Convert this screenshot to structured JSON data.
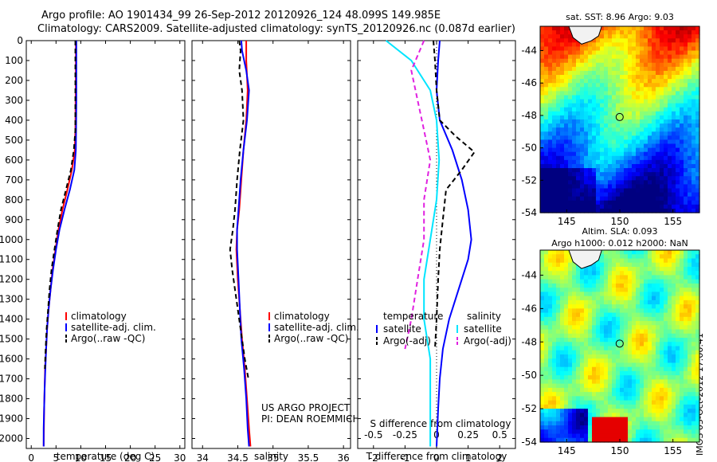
{
  "header": {
    "line1": "Argo profile: AO 1901434_99 26-Sep-2012 20120926_124 48.099S 149.985E",
    "line2": "Climatology: CARS2009. Satellite-adjusted climatology: synTS_20120926.nc (0.087d earlier)"
  },
  "side_label": "IMOS 03-Oct-2012 17:00:41",
  "colors": {
    "climatology": "#ff0000",
    "satellite": "#0000ff",
    "argo": "#000000",
    "salinity_satellite": "#00e5ff",
    "salinity_argo": "#e020e0"
  },
  "chart_data": [
    {
      "type": "line",
      "panel": "temperature",
      "xlabel": "temperature (deg C)",
      "xlim": [
        -1,
        31
      ],
      "xticks": [
        0,
        5,
        10,
        15,
        20,
        25,
        30
      ],
      "xtick_labels": [
        "0",
        "5",
        "10",
        "15",
        "20",
        "25",
        "30"
      ],
      "ylim": [
        2050,
        0
      ],
      "yticks": [
        0,
        100,
        200,
        300,
        400,
        500,
        600,
        700,
        800,
        900,
        1000,
        1100,
        1200,
        1300,
        1400,
        1500,
        1600,
        1700,
        1800,
        1900,
        2000
      ],
      "ytick_labels": [
        "0",
        "100",
        "200",
        "300",
        "400",
        "500",
        "600",
        "700",
        "800",
        "900",
        "1000",
        "1100",
        "1200",
        "1300",
        "1400",
        "1500",
        "1600",
        "1700",
        "1800",
        "1900",
        "2000"
      ],
      "legend": [
        "climatology",
        "satellite-adj. clim.",
        "Argo(..raw -QC)"
      ],
      "series": [
        {
          "name": "climatology",
          "style": "solid",
          "color": "#ff0000",
          "points": [
            [
              9.0,
              0
            ],
            [
              9.0,
              100
            ],
            [
              8.95,
              300
            ],
            [
              8.9,
              450
            ],
            [
              8.8,
              550
            ],
            [
              8.2,
              650
            ],
            [
              7.3,
              750
            ],
            [
              6.3,
              850
            ],
            [
              5.5,
              950
            ],
            [
              4.9,
              1050
            ],
            [
              4.3,
              1150
            ],
            [
              3.9,
              1250
            ],
            [
              3.5,
              1350
            ],
            [
              3.2,
              1450
            ],
            [
              3.0,
              1550
            ],
            [
              2.8,
              1650
            ],
            [
              2.7,
              1750
            ],
            [
              2.6,
              1850
            ],
            [
              2.55,
              1950
            ],
            [
              2.5,
              2040
            ]
          ]
        },
        {
          "name": "satellite-adj. clim.",
          "style": "solid",
          "color": "#0000ff",
          "points": [
            [
              9.1,
              0
            ],
            [
              9.1,
              100
            ],
            [
              9.1,
              300
            ],
            [
              9.05,
              450
            ],
            [
              9.0,
              550
            ],
            [
              8.7,
              650
            ],
            [
              7.8,
              750
            ],
            [
              6.7,
              850
            ],
            [
              5.7,
              950
            ],
            [
              5.0,
              1050
            ],
            [
              4.4,
              1150
            ],
            [
              3.9,
              1250
            ],
            [
              3.5,
              1350
            ],
            [
              3.2,
              1450
            ],
            [
              3.0,
              1550
            ],
            [
              2.85,
              1650
            ],
            [
              2.7,
              1750
            ],
            [
              2.6,
              1850
            ],
            [
              2.5,
              1950
            ],
            [
              2.5,
              2040
            ]
          ]
        },
        {
          "name": "Argo(..raw -QC)",
          "style": "dashed",
          "color": "#000000",
          "points": [
            [
              8.9,
              0
            ],
            [
              8.9,
              100
            ],
            [
              8.9,
              300
            ],
            [
              8.9,
              450
            ],
            [
              8.6,
              550
            ],
            [
              8.0,
              650
            ],
            [
              7.0,
              750
            ],
            [
              6.0,
              850
            ],
            [
              5.3,
              950
            ],
            [
              4.7,
              1050
            ],
            [
              4.1,
              1150
            ],
            [
              3.7,
              1250
            ],
            [
              3.4,
              1350
            ],
            [
              3.1,
              1450
            ],
            [
              2.9,
              1550
            ],
            [
              2.75,
              1650
            ]
          ]
        }
      ]
    },
    {
      "type": "line",
      "panel": "salinity",
      "xlabel": "salinity",
      "xlim": [
        33.85,
        36.1
      ],
      "xticks": [
        34,
        34.5,
        35,
        35.5,
        36
      ],
      "xtick_labels": [
        "34",
        "34.5",
        "35",
        "35.5",
        "36"
      ],
      "ylim": [
        2050,
        0
      ],
      "legend": [
        "climatology",
        "satellite-adj. clim.",
        "Argo(..raw -QC)"
      ],
      "annotation": [
        "US ARGO PROJECT",
        "PI: DEAN ROEMMICH"
      ],
      "series": [
        {
          "name": "climatology",
          "style": "solid",
          "color": "#ff0000",
          "points": [
            [
              34.62,
              0
            ],
            [
              34.62,
              100
            ],
            [
              34.64,
              250
            ],
            [
              34.62,
              400
            ],
            [
              34.58,
              550
            ],
            [
              34.55,
              700
            ],
            [
              34.52,
              850
            ],
            [
              34.49,
              950
            ],
            [
              34.48,
              1050
            ],
            [
              34.5,
              1200
            ],
            [
              34.53,
              1350
            ],
            [
              34.56,
              1500
            ],
            [
              34.6,
              1650
            ],
            [
              34.63,
              1800
            ],
            [
              34.66,
              1950
            ],
            [
              34.68,
              2040
            ]
          ]
        },
        {
          "name": "satellite-adj. clim.",
          "style": "solid",
          "color": "#0000ff",
          "points": [
            [
              34.55,
              0
            ],
            [
              34.56,
              50
            ],
            [
              34.62,
              150
            ],
            [
              34.66,
              250
            ],
            [
              34.63,
              400
            ],
            [
              34.58,
              550
            ],
            [
              34.54,
              700
            ],
            [
              34.51,
              850
            ],
            [
              34.49,
              950
            ],
            [
              34.49,
              1050
            ],
            [
              34.51,
              1200
            ],
            [
              34.53,
              1350
            ],
            [
              34.55,
              1500
            ],
            [
              34.59,
              1650
            ],
            [
              34.62,
              1800
            ],
            [
              34.64,
              1950
            ],
            [
              34.66,
              2040
            ]
          ]
        },
        {
          "name": "Argo(..raw -QC)",
          "style": "dashed",
          "color": "#000000",
          "points": [
            [
              34.52,
              0
            ],
            [
              34.54,
              50
            ],
            [
              34.52,
              150
            ],
            [
              34.56,
              250
            ],
            [
              34.58,
              400
            ],
            [
              34.53,
              550
            ],
            [
              34.49,
              700
            ],
            [
              34.46,
              850
            ],
            [
              34.43,
              950
            ],
            [
              34.39,
              1050
            ],
            [
              34.42,
              1150
            ],
            [
              34.48,
              1300
            ],
            [
              34.54,
              1450
            ],
            [
              34.6,
              1600
            ],
            [
              34.65,
              1700
            ]
          ]
        }
      ]
    },
    {
      "type": "line",
      "panel": "differences",
      "xlabel": "T difference from climatology",
      "xlabel2": "S difference from climatology",
      "xlim": [
        -2.5,
        2.5
      ],
      "xticks": [
        -2,
        -1,
        0,
        1,
        2
      ],
      "xtick_labels": [
        "-2",
        "-1",
        "0",
        "1",
        "2"
      ],
      "top_ticks": [
        -0.5,
        -0.25,
        0,
        0.25,
        0.5
      ],
      "top_tick_labels": [
        "-0.5",
        "-0.25",
        "0",
        "0.25",
        "0.5"
      ],
      "ylim": [
        2050,
        0
      ],
      "legend_groups": [
        {
          "title": "temperature",
          "items": [
            "satellite",
            "Argo(-adj)"
          ]
        },
        {
          "title": "salinity",
          "items": [
            "satellite",
            "Argo(-adj)"
          ]
        }
      ],
      "series": [
        {
          "name": "temperature satellite",
          "style": "solid",
          "color": "#0000ff",
          "points": [
            [
              0.1,
              0
            ],
            [
              0.05,
              100
            ],
            [
              0.0,
              250
            ],
            [
              0.1,
              400
            ],
            [
              0.5,
              550
            ],
            [
              0.8,
              700
            ],
            [
              1.0,
              850
            ],
            [
              1.1,
              1000
            ],
            [
              1.0,
              1100
            ],
            [
              0.7,
              1250
            ],
            [
              0.4,
              1400
            ],
            [
              0.2,
              1550
            ],
            [
              0.1,
              1700
            ],
            [
              0.05,
              1850
            ],
            [
              0.0,
              2040
            ]
          ]
        },
        {
          "name": "temperature Argo(-adj)",
          "style": "dashed",
          "color": "#000000",
          "points": [
            [
              -0.1,
              0
            ],
            [
              -0.05,
              100
            ],
            [
              0.0,
              250
            ],
            [
              0.1,
              400
            ],
            [
              0.6,
              480
            ],
            [
              1.2,
              560
            ],
            [
              0.8,
              650
            ],
            [
              0.3,
              750
            ],
            [
              0.2,
              900
            ],
            [
              0.1,
              1050
            ],
            [
              0.05,
              1200
            ],
            [
              0.0,
              1400
            ],
            [
              -0.05,
              1550
            ]
          ]
        },
        {
          "name": "salinity satellite",
          "style": "solid",
          "color": "#00e5ff",
          "points": [
            [
              -0.4,
              0
            ],
            [
              -0.2,
              100
            ],
            [
              -0.05,
              250
            ],
            [
              0.0,
              400
            ],
            [
              0.02,
              600
            ],
            [
              0.0,
              800
            ],
            [
              -0.05,
              1000
            ],
            [
              -0.1,
              1200
            ],
            [
              -0.1,
              1400
            ],
            [
              -0.05,
              1600
            ],
            [
              -0.05,
              1800
            ],
            [
              -0.05,
              2040
            ]
          ]
        },
        {
          "name": "salinity Argo(-adj)",
          "style": "dashed",
          "color": "#e020e0",
          "points": [
            [
              -0.1,
              0
            ],
            [
              -0.2,
              150
            ],
            [
              -0.15,
              300
            ],
            [
              -0.1,
              450
            ],
            [
              -0.05,
              600
            ],
            [
              -0.1,
              800
            ],
            [
              -0.1,
              1000
            ],
            [
              -0.15,
              1200
            ],
            [
              -0.2,
              1400
            ],
            [
              -0.25,
              1550
            ]
          ]
        }
      ]
    },
    {
      "type": "heatmap",
      "panel": "sst_map",
      "title": "sat. SST: 8.96 Argo: 9.03",
      "xlim": [
        142.5,
        157.5
      ],
      "xticks": [
        145,
        150,
        155
      ],
      "xtick_labels": [
        "145",
        "150",
        "155"
      ],
      "ylim": [
        -54,
        -42.5
      ],
      "yticks": [
        -44,
        -46,
        -48,
        -50,
        -52,
        -54
      ],
      "ytick_labels": [
        "-44",
        "-46",
        "-48",
        "-50",
        "-52",
        "-54"
      ],
      "marker": {
        "lon": 149.985,
        "lat": -48.099
      }
    },
    {
      "type": "heatmap",
      "panel": "sla_map",
      "title": "Altim. SLA: 0.093",
      "subtitle": "Argo h1000: 0.012 h2000: NaN",
      "xlim": [
        142.5,
        157.5
      ],
      "xticks": [
        145,
        150,
        155
      ],
      "xtick_labels": [
        "145",
        "150",
        "155"
      ],
      "ylim": [
        -54,
        -42.5
      ],
      "yticks": [
        -44,
        -46,
        -48,
        -50,
        -52,
        -54
      ],
      "ytick_labels": [
        "-44",
        "-46",
        "-48",
        "-50",
        "-52",
        "-54"
      ],
      "marker": {
        "lon": 149.985,
        "lat": -48.099
      }
    }
  ]
}
